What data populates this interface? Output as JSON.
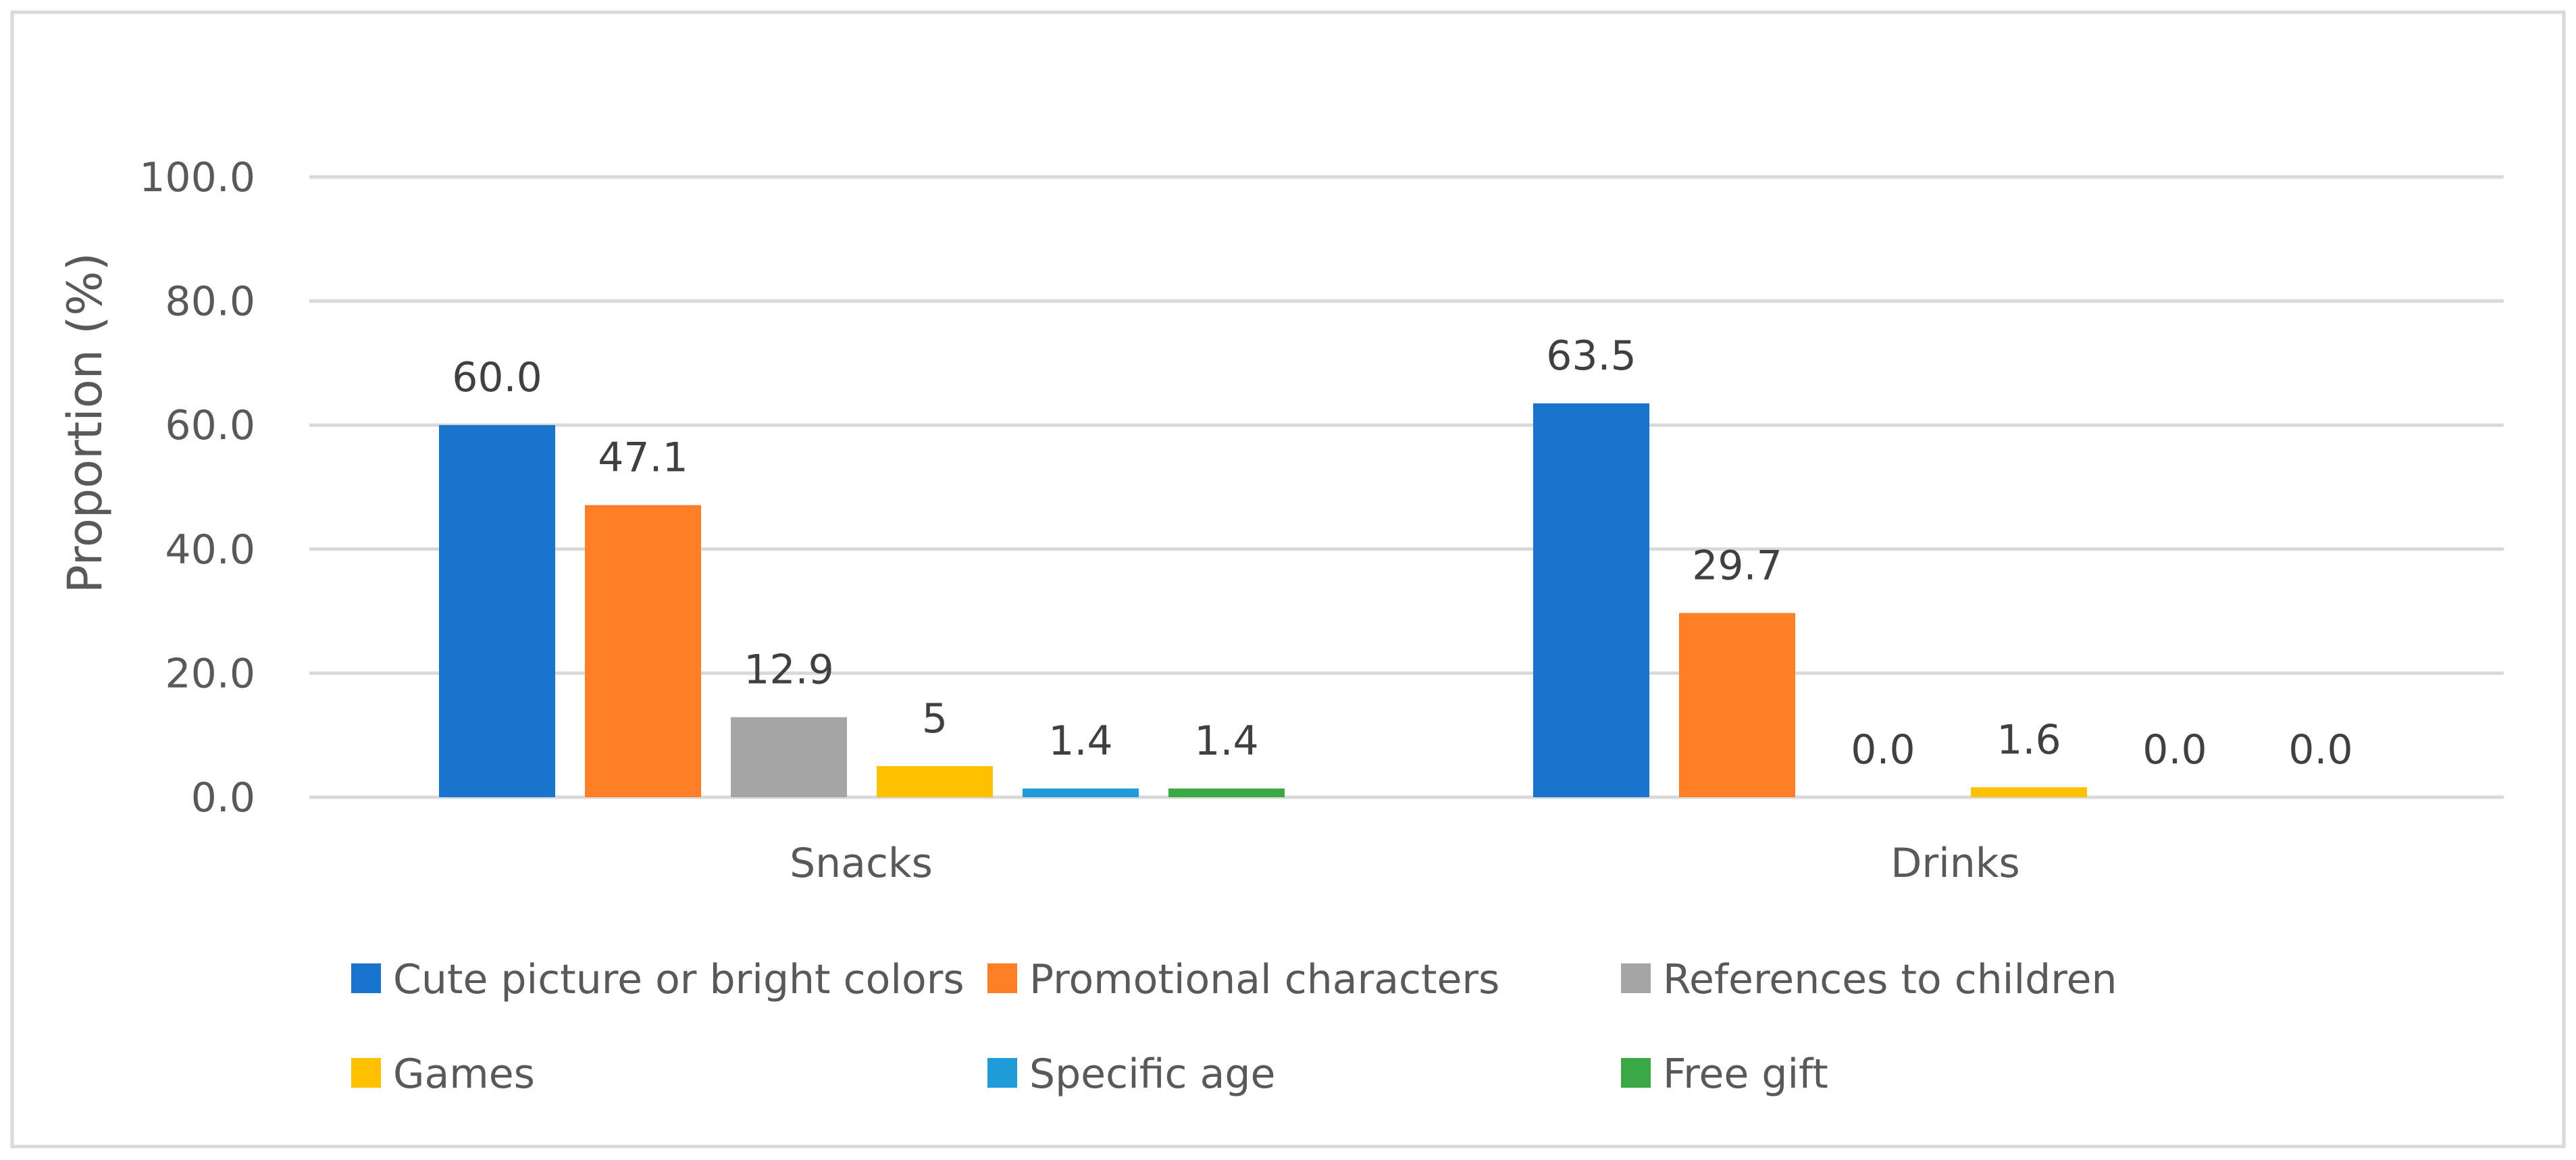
{
  "chart_data": {
    "type": "bar",
    "title": "",
    "xlabel": "",
    "ylabel": "Proportion  (%)",
    "ylim": [
      0,
      100
    ],
    "yticks": [
      "0.0",
      "20.0",
      "40.0",
      "60.0",
      "80.0",
      "100.0"
    ],
    "ytick_values": [
      0,
      20,
      40,
      60,
      80,
      100
    ],
    "grid": true,
    "legend_position": "bottom",
    "categories": [
      "Snacks",
      "Drinks"
    ],
    "series": [
      {
        "name": "Cute picture or bright colors",
        "color": "#1874CD",
        "values": [
          60.0,
          63.5
        ],
        "labels": [
          "60.0",
          "63.5"
        ]
      },
      {
        "name": "Promotional characters",
        "color": "#FF7F27",
        "values": [
          47.1,
          29.7
        ],
        "labels": [
          "47.1",
          "29.7"
        ]
      },
      {
        "name": "References to children",
        "color": "#A5A5A5",
        "values": [
          12.9,
          0.0
        ],
        "labels": [
          "12.9",
          "0.0"
        ]
      },
      {
        "name": "Games",
        "color": "#FFC000",
        "values": [
          5,
          1.6
        ],
        "labels": [
          "5",
          "1.6"
        ]
      },
      {
        "name": "Specific age",
        "color": "#1F9BD7",
        "values": [
          1.4,
          0.0
        ],
        "labels": [
          "1.4",
          "0.0"
        ]
      },
      {
        "name": "Free gift",
        "color": "#3AA843",
        "values": [
          1.4,
          0.0
        ],
        "labels": [
          "1.4",
          "0.0"
        ]
      }
    ]
  }
}
